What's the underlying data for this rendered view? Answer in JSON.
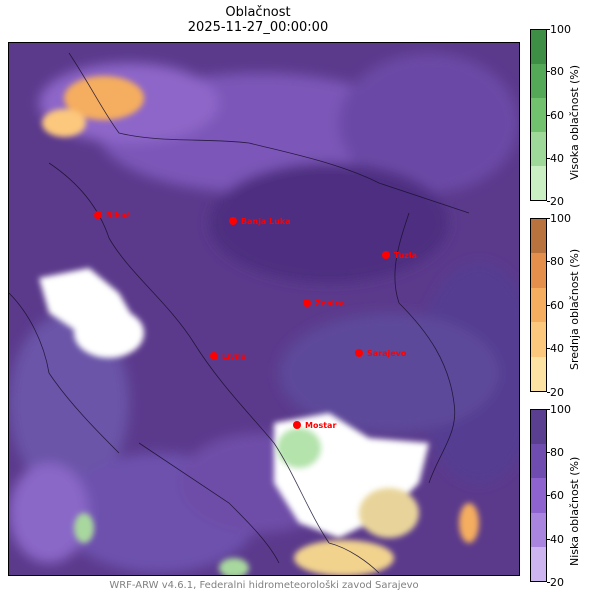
{
  "title": "Oblačnost",
  "timestamp": "2025-11-27_00:00:00",
  "credit": "WRF-ARW v4.6.1, Federalni hidrometeorološki zavod Sarajevo",
  "cities": [
    {
      "name": "Bihać"
    },
    {
      "name": "Banja Luka"
    },
    {
      "name": "Tuzla"
    },
    {
      "name": "Zenica"
    },
    {
      "name": "Livno"
    },
    {
      "name": "Sarajevo"
    },
    {
      "name": "Mostar"
    }
  ],
  "colorbars": [
    {
      "label": "Visoka oblačnost (%)",
      "ticks": [
        "100",
        "80",
        "60",
        "40",
        "20"
      ],
      "colors": [
        "#3e8e45",
        "#53a957",
        "#71c16e",
        "#9fd99a",
        "#c9efc3"
      ]
    },
    {
      "label": "Srednja oblačnost (%)",
      "ticks": [
        "100",
        "80",
        "60",
        "40",
        "20"
      ],
      "colors": [
        "#b7723e",
        "#e58f4d",
        "#f5ad5f",
        "#fcc87d",
        "#fde3a3"
      ]
    },
    {
      "label": "Niska oblačnost (%)",
      "ticks": [
        "100",
        "80",
        "60",
        "40",
        "20"
      ],
      "colors": [
        "#5a3f91",
        "#6f4cb0",
        "#8e62cf",
        "#a985e0",
        "#cdb5f0"
      ]
    }
  ],
  "colors": {
    "city_marker": "#ff0000",
    "city_label": "#ff0000"
  }
}
